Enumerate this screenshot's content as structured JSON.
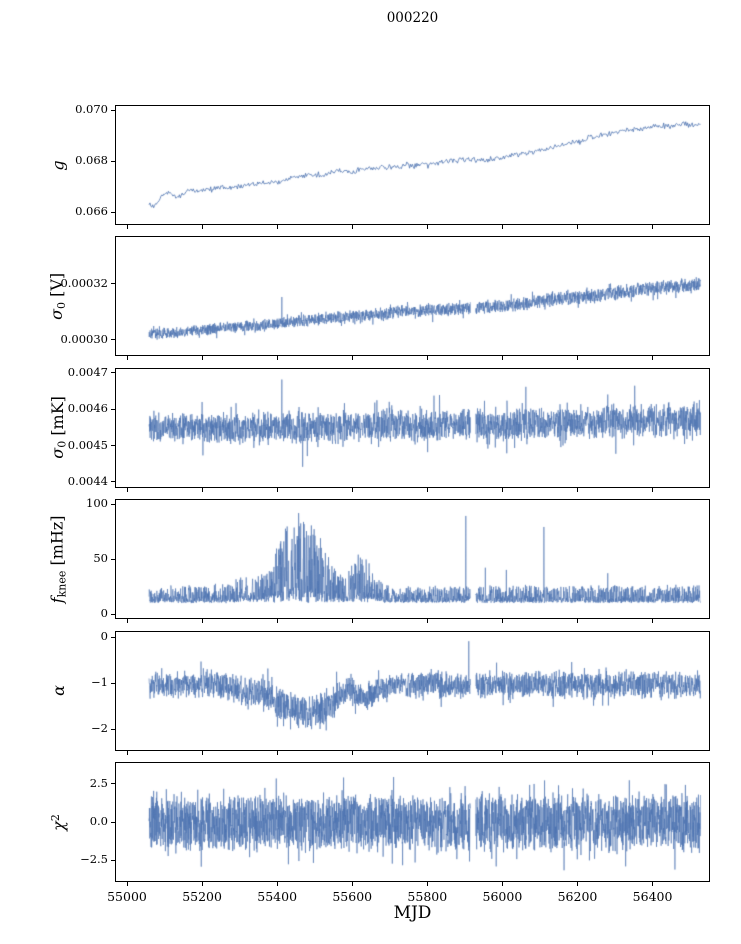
{
  "chart_data": {
    "type": "line",
    "title": "000220",
    "xlabel": "MJD",
    "line_color": "#4c72b0",
    "xlim": [
      54968,
      56553
    ],
    "x_ticks": [
      55000,
      55200,
      55400,
      55600,
      55800,
      56000,
      56200,
      56400
    ],
    "x_tick_labels": [
      "55000",
      "55200",
      "55400",
      "55600",
      "55800",
      "56000",
      "56200",
      "56400"
    ],
    "x_data_range": [
      55056,
      56525
    ],
    "panels": [
      {
        "id": "g",
        "ylabel": [
          {
            "t": "g",
            "it": true
          }
        ],
        "ylim": [
          0.0655,
          0.0702
        ],
        "yticks": [
          0.066,
          0.068,
          0.07
        ],
        "ytick_labels": [
          "0.066",
          "0.068",
          "0.070"
        ],
        "points": 600,
        "mode": "sym",
        "spread": 0.4,
        "tail_prob": 0.05,
        "tail_scale": 2.2,
        "line_width": 0.8,
        "trend": [
          [
            55056,
            0.0664
          ],
          [
            55070,
            0.0662
          ],
          [
            55090,
            0.0667
          ],
          [
            55110,
            0.0668
          ],
          [
            55130,
            0.0666
          ],
          [
            55160,
            0.0669
          ],
          [
            55200,
            0.0669
          ],
          [
            55240,
            0.067
          ],
          [
            55280,
            0.067
          ],
          [
            55320,
            0.0671
          ],
          [
            55360,
            0.0672
          ],
          [
            55400,
            0.0672
          ],
          [
            55440,
            0.0674
          ],
          [
            55480,
            0.0675
          ],
          [
            55520,
            0.0675
          ],
          [
            55560,
            0.0677
          ],
          [
            55600,
            0.0676
          ],
          [
            55640,
            0.0678
          ],
          [
            55680,
            0.0678
          ],
          [
            55720,
            0.0678
          ],
          [
            55760,
            0.0679
          ],
          [
            55800,
            0.0679
          ],
          [
            55840,
            0.068
          ],
          [
            55880,
            0.0681
          ],
          [
            55920,
            0.0681
          ],
          [
            55960,
            0.0681
          ],
          [
            56000,
            0.0682
          ],
          [
            56040,
            0.0683
          ],
          [
            56080,
            0.0684
          ],
          [
            56120,
            0.0685
          ],
          [
            56160,
            0.0687
          ],
          [
            56200,
            0.0688
          ],
          [
            56240,
            0.069
          ],
          [
            56280,
            0.0691
          ],
          [
            56320,
            0.0692
          ],
          [
            56360,
            0.0693
          ],
          [
            56400,
            0.0694
          ],
          [
            56440,
            0.0694
          ],
          [
            56480,
            0.0695
          ],
          [
            56525,
            0.0694
          ]
        ],
        "amp": [
          [
            55056,
            0.0001
          ],
          [
            56525,
            0.00013
          ]
        ],
        "spikes": [],
        "gaps": []
      },
      {
        "id": "sigma0-V",
        "ylabel": [
          {
            "t": "σ",
            "it": true
          },
          {
            "t": "0",
            "sub": true
          },
          {
            "t": " [V]"
          }
        ],
        "ylim": [
          0.000294,
          0.000337
        ],
        "yticks": [
          0.0003,
          0.00032
        ],
        "ytick_labels": [
          "0.00030",
          "0.00032"
        ],
        "points": 2600,
        "mode": "sym",
        "spread": 0.55,
        "tail_prob": 0.06,
        "tail_scale": 1.7,
        "line_width": 0.6,
        "trend": [
          [
            55056,
            0.000302
          ],
          [
            55150,
            0.000303
          ],
          [
            55250,
            0.0003045
          ],
          [
            55350,
            0.000305
          ],
          [
            55450,
            0.000307
          ],
          [
            55550,
            0.000308
          ],
          [
            55650,
            0.000309
          ],
          [
            55750,
            0.0003105
          ],
          [
            55850,
            0.000311
          ],
          [
            55950,
            0.000312
          ],
          [
            56050,
            0.000313
          ],
          [
            56150,
            0.000315
          ],
          [
            56250,
            0.000316
          ],
          [
            56350,
            0.000318
          ],
          [
            56450,
            0.000319
          ],
          [
            56525,
            0.00032
          ]
        ],
        "amp": [
          [
            55056,
            2.2e-06
          ],
          [
            56525,
            3e-06
          ]
        ],
        "spikes": [
          [
            55410,
            0.0003155
          ]
        ],
        "gaps": [
          [
            55912,
            55926
          ]
        ]
      },
      {
        "id": "sigma0-mK",
        "ylabel": [
          {
            "t": "σ",
            "it": true
          },
          {
            "t": "0",
            "sub": true
          },
          {
            "t": " [mK]"
          }
        ],
        "ylim": [
          0.004384,
          0.004714
        ],
        "yticks": [
          0.0044,
          0.0045,
          0.0046,
          0.0047
        ],
        "ytick_labels": [
          "0.0044",
          "0.0045",
          "0.0046",
          "0.0047"
        ],
        "points": 2600,
        "mode": "sym",
        "spread": 0.5,
        "tail_prob": 0.08,
        "tail_scale": 1.8,
        "line_width": 0.6,
        "trend": [
          [
            55056,
            0.004555
          ],
          [
            55300,
            0.00455
          ],
          [
            55600,
            0.004555
          ],
          [
            56000,
            0.00456
          ],
          [
            56300,
            0.00457
          ],
          [
            56525,
            0.004572
          ]
        ],
        "amp": [
          [
            55056,
            4.6e-05
          ],
          [
            56525,
            5.2e-05
          ]
        ],
        "spikes": [
          [
            55410,
            0.004685
          ],
          [
            55465,
            0.004445
          ],
          [
            56060,
            0.004665
          ],
          [
            56350,
            0.004668
          ]
        ],
        "gaps": [
          [
            55912,
            55926
          ]
        ]
      },
      {
        "id": "fknee",
        "ylabel": [
          {
            "t": "f",
            "it": true
          },
          {
            "t": "knee",
            "sub": true
          },
          {
            "t": " [mHz]"
          }
        ],
        "ylim": [
          -4.5,
          104.5
        ],
        "yticks": [
          0,
          50,
          100
        ],
        "ytick_labels": [
          "0",
          "50",
          "100"
        ],
        "points": 2600,
        "mode": "skew",
        "pow": 2.4,
        "tail_prob": 0.015,
        "tail_scale": 1,
        "line_width": 0.6,
        "trend": [
          [
            55056,
            12
          ],
          [
            55280,
            12
          ],
          [
            55310,
            14
          ],
          [
            55340,
            13
          ],
          [
            55380,
            14
          ],
          [
            55420,
            16
          ],
          [
            55450,
            17
          ],
          [
            55500,
            16
          ],
          [
            55540,
            14
          ],
          [
            55570,
            13
          ],
          [
            55590,
            14
          ],
          [
            55610,
            15
          ],
          [
            55650,
            14
          ],
          [
            55690,
            12
          ],
          [
            56525,
            12
          ]
        ],
        "amp": [
          [
            55056,
            14
          ],
          [
            55270,
            16
          ],
          [
            55300,
            22
          ],
          [
            55330,
            18
          ],
          [
            55370,
            26
          ],
          [
            55410,
            60
          ],
          [
            55440,
            72
          ],
          [
            55470,
            75
          ],
          [
            55500,
            62
          ],
          [
            55530,
            45
          ],
          [
            55560,
            22
          ],
          [
            55590,
            28
          ],
          [
            55615,
            40
          ],
          [
            55640,
            34
          ],
          [
            55665,
            20
          ],
          [
            55700,
            15
          ],
          [
            55800,
            14
          ],
          [
            56525,
            15
          ]
        ],
        "spikes": [
          [
            55900,
            90
          ],
          [
            55952,
            43
          ],
          [
            56008,
            41
          ],
          [
            56108,
            80
          ],
          [
            56278,
            38
          ]
        ],
        "gaps": [
          [
            55912,
            55926
          ]
        ]
      },
      {
        "id": "alpha",
        "ylabel": [
          {
            "t": "α",
            "it": true
          }
        ],
        "ylim": [
          -2.46,
          0.15
        ],
        "yticks": [
          0,
          -1,
          -2
        ],
        "ytick_labels": [
          "0",
          "−1",
          "−2"
        ],
        "points": 2600,
        "mode": "sym",
        "spread": 0.5,
        "tail_prob": 0.07,
        "tail_scale": 1.7,
        "line_width": 0.6,
        "trend": [
          [
            55056,
            -1.0
          ],
          [
            55260,
            -1.0
          ],
          [
            55300,
            -1.15
          ],
          [
            55330,
            -1.2
          ],
          [
            55360,
            -1.1
          ],
          [
            55390,
            -1.3
          ],
          [
            55420,
            -1.45
          ],
          [
            55450,
            -1.55
          ],
          [
            55480,
            -1.6
          ],
          [
            55510,
            -1.55
          ],
          [
            55540,
            -1.45
          ],
          [
            55565,
            -1.2
          ],
          [
            55585,
            -1.05
          ],
          [
            55605,
            -1.2
          ],
          [
            55630,
            -1.3
          ],
          [
            55655,
            -1.15
          ],
          [
            55680,
            -1.05
          ],
          [
            55720,
            -1.0
          ],
          [
            56525,
            -1.0
          ]
        ],
        "amp": [
          [
            55056,
            0.33
          ],
          [
            55380,
            0.38
          ],
          [
            55480,
            0.42
          ],
          [
            55560,
            0.35
          ],
          [
            55700,
            0.33
          ],
          [
            56525,
            0.34
          ]
        ],
        "spikes": [
          [
            55908,
            -0.05
          ]
        ],
        "gaps": [
          [
            55912,
            55926
          ]
        ]
      },
      {
        "id": "chi2",
        "ylabel": [
          {
            "t": "χ",
            "it": true
          },
          {
            "t": "2",
            "sup": true
          }
        ],
        "ylim": [
          -3.9,
          3.9
        ],
        "yticks": [
          2.5,
          0.0,
          -2.5
        ],
        "ytick_labels": [
          "2.5",
          "0.0",
          "−2.5"
        ],
        "points": 3000,
        "mode": "sym",
        "spread": 0.6,
        "tail_prob": 0.08,
        "tail_scale": 1.55,
        "line_width": 0.6,
        "trend": [
          [
            55056,
            0
          ],
          [
            56525,
            0
          ]
        ],
        "amp": [
          [
            55056,
            2.0
          ],
          [
            56525,
            2.05
          ]
        ],
        "spikes": [],
        "gaps": [
          [
            55912,
            55926
          ]
        ]
      }
    ]
  }
}
